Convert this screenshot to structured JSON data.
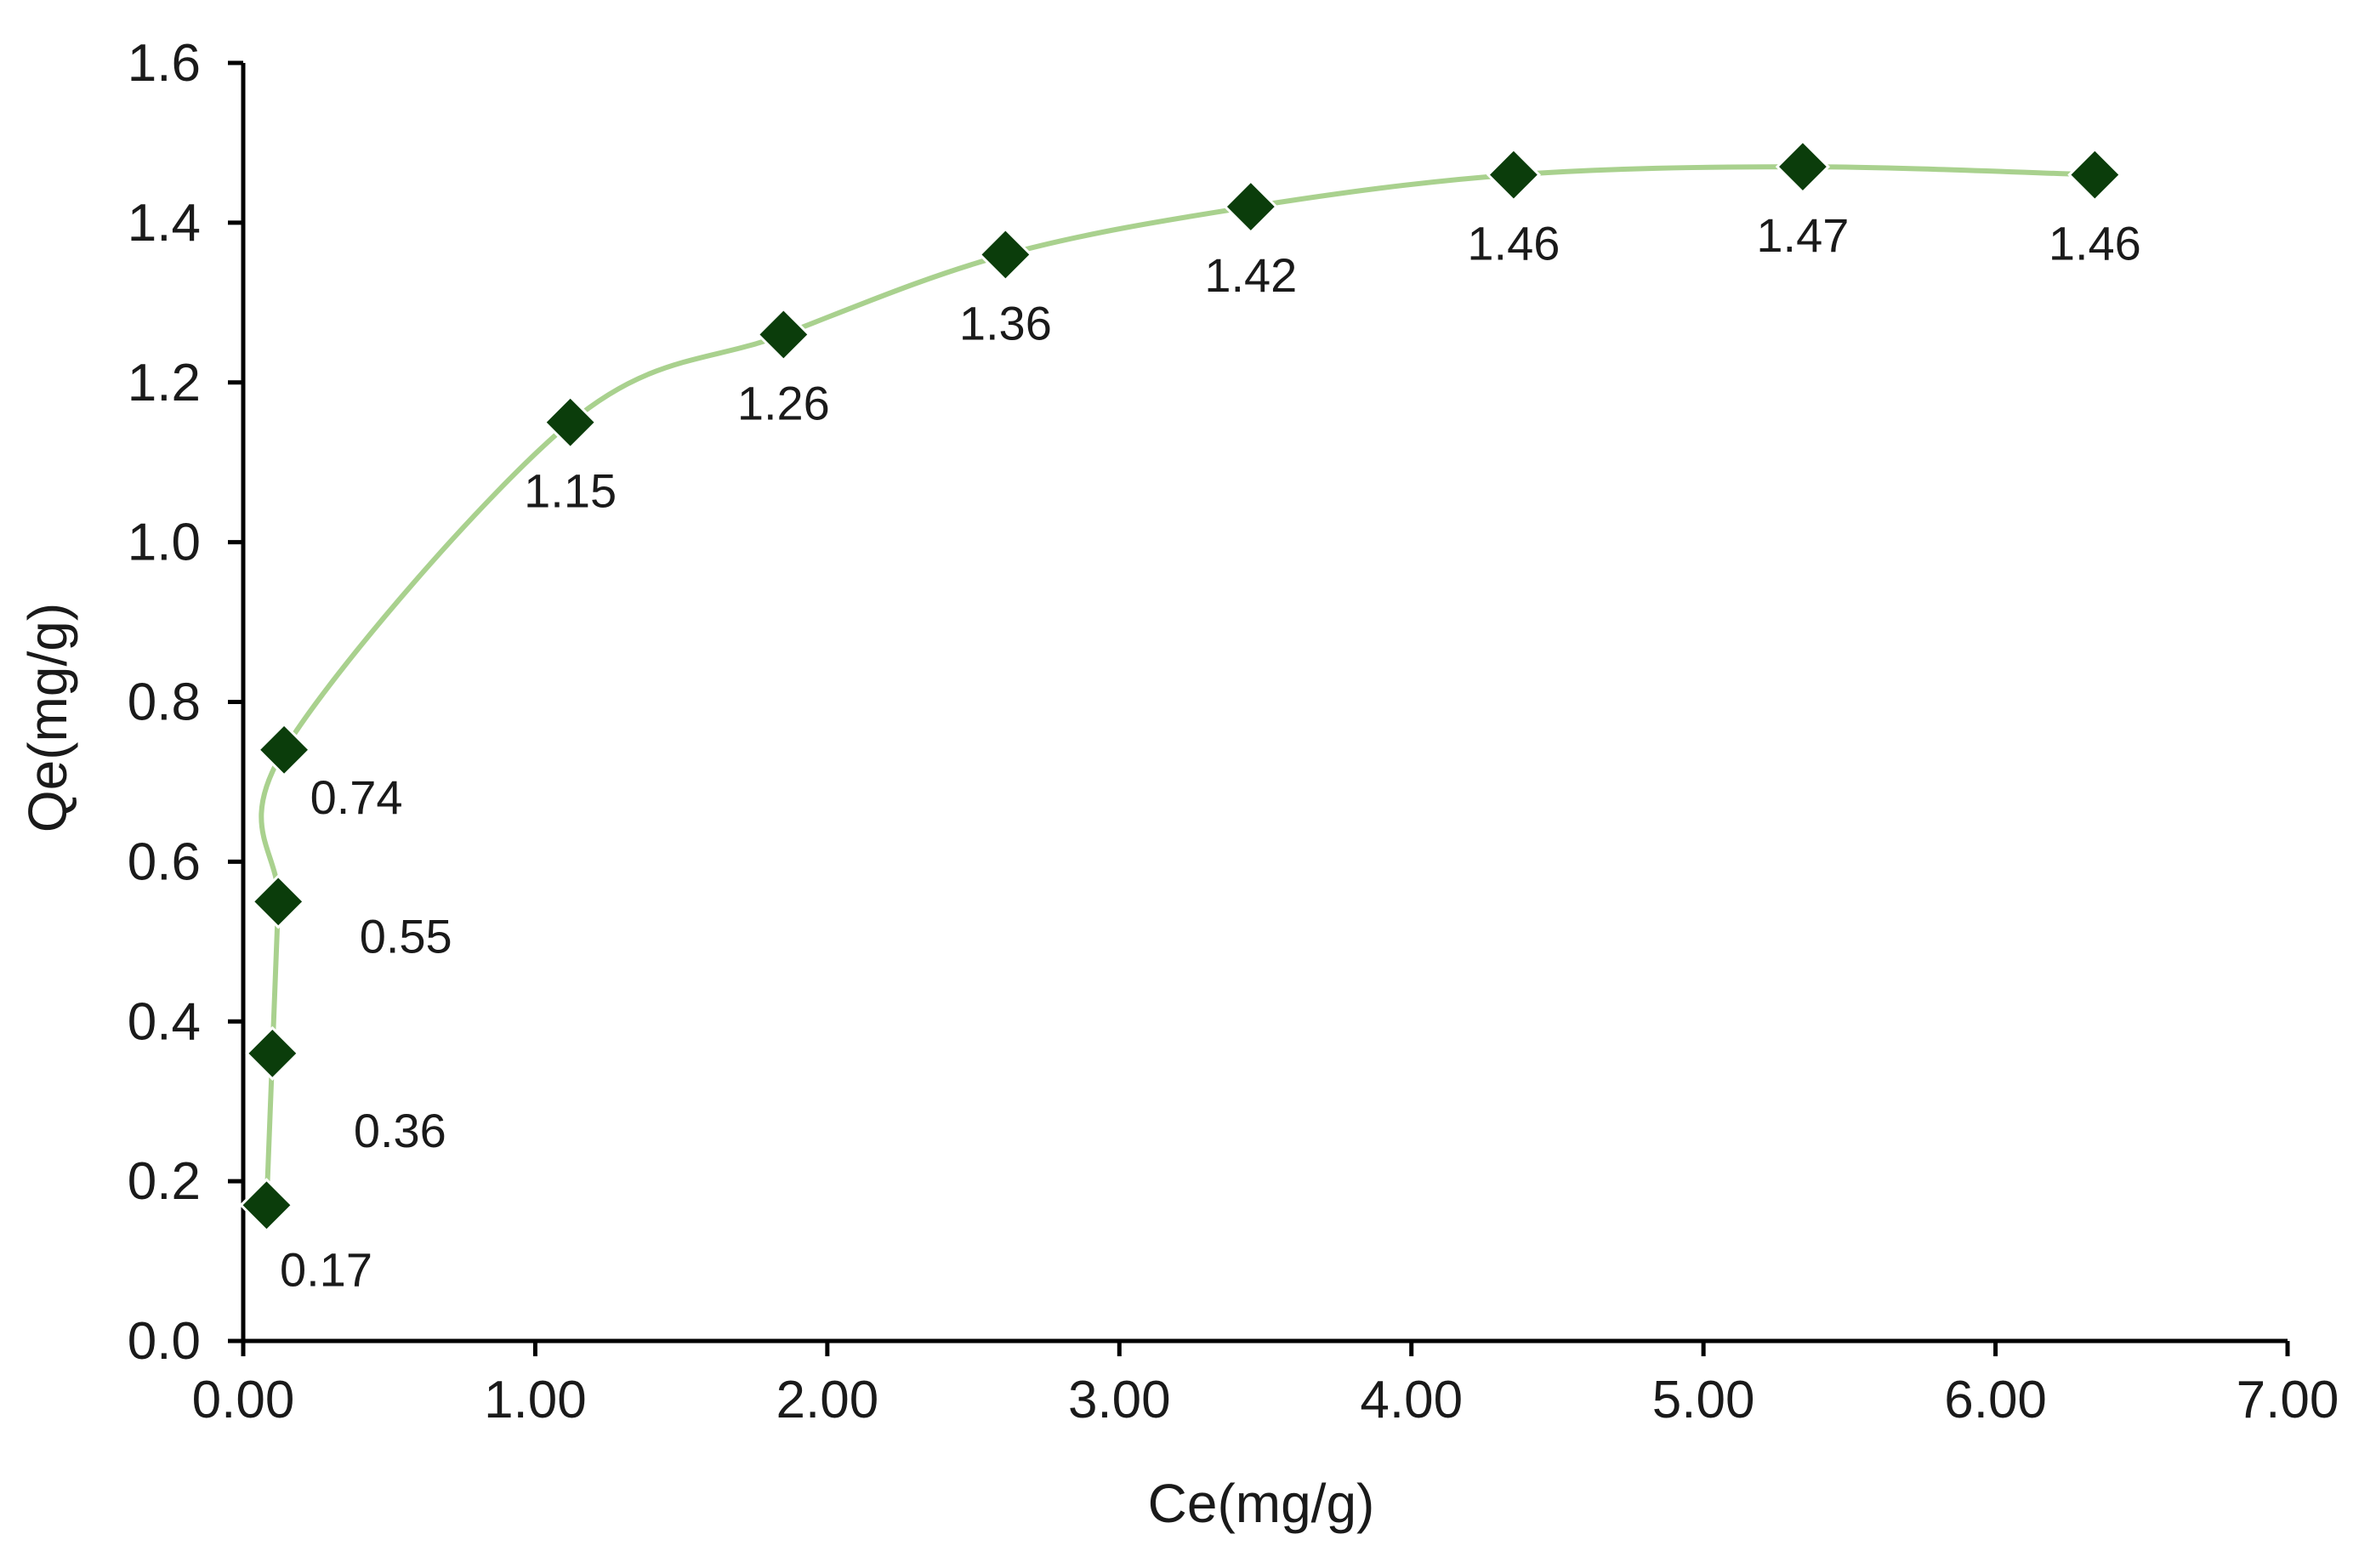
{
  "chart_data": {
    "type": "scatter",
    "smooth_line": true,
    "xlabel": "Ce(mg/g)",
    "ylabel": "Qe(mg/g)",
    "xlim": [
      0,
      7
    ],
    "ylim": [
      0,
      1.6
    ],
    "x_ticks": [
      "0.00",
      "1.00",
      "2.00",
      "3.00",
      "4.00",
      "5.00",
      "6.00",
      "7.00"
    ],
    "y_ticks": [
      "0.0",
      "0.2",
      "0.4",
      "0.6",
      "0.8",
      "1.0",
      "1.2",
      "1.4",
      "1.6"
    ],
    "grid": false,
    "line_color": "#a9d18e",
    "marker_color": "#0b3d0b",
    "marker": "diamond",
    "points": [
      {
        "x": 0.08,
        "y": 0.17,
        "label": "0.17"
      },
      {
        "x": 0.1,
        "y": 0.36,
        "label": "0.36"
      },
      {
        "x": 0.12,
        "y": 0.55,
        "label": "0.55"
      },
      {
        "x": 0.14,
        "y": 0.74,
        "label": "0.74"
      },
      {
        "x": 1.12,
        "y": 1.15,
        "label": "1.15"
      },
      {
        "x": 1.85,
        "y": 1.26,
        "label": "1.26"
      },
      {
        "x": 2.61,
        "y": 1.36,
        "label": "1.36"
      },
      {
        "x": 3.45,
        "y": 1.42,
        "label": "1.42"
      },
      {
        "x": 4.35,
        "y": 1.46,
        "label": "1.46"
      },
      {
        "x": 5.34,
        "y": 1.47,
        "label": "1.47"
      },
      {
        "x": 6.34,
        "y": 1.46,
        "label": "1.46"
      }
    ]
  }
}
